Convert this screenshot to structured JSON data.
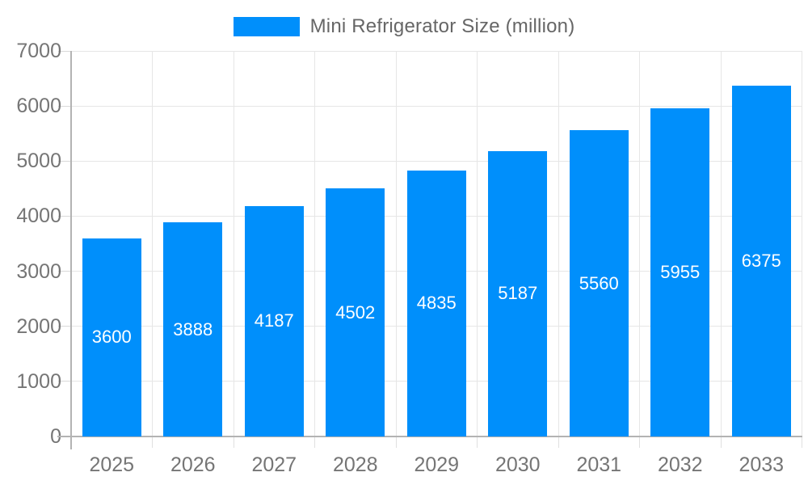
{
  "legend": {
    "label": "Mini Refrigerator Size (million)",
    "swatch_color": "#008ffb"
  },
  "chart_data": {
    "type": "bar",
    "title": "Mini Refrigerator Size (million)",
    "categories": [
      "2025",
      "2026",
      "2027",
      "2028",
      "2029",
      "2030",
      "2031",
      "2032",
      "2033"
    ],
    "values": [
      3600,
      3888,
      4187,
      4502,
      4835,
      5187,
      5560,
      5955,
      6375
    ],
    "value_labels": [
      "3600",
      "3888",
      "4187",
      "4502",
      "4835",
      "5187",
      "5560",
      "5955",
      "6375"
    ],
    "xlabel": "",
    "ylabel": "",
    "ylim": [
      0,
      7000
    ],
    "ytick_step": 1000,
    "ytick_labels": [
      "0",
      "1000",
      "2000",
      "3000",
      "4000",
      "5000",
      "6000",
      "7000"
    ],
    "grid": true,
    "legend_position": "top",
    "bar_color": "#008ffb",
    "value_label_color": "#ffffff",
    "axis_color": "#b3b3b3",
    "gridline_color": "#e6e6e6",
    "tick_label_color": "#757575"
  }
}
